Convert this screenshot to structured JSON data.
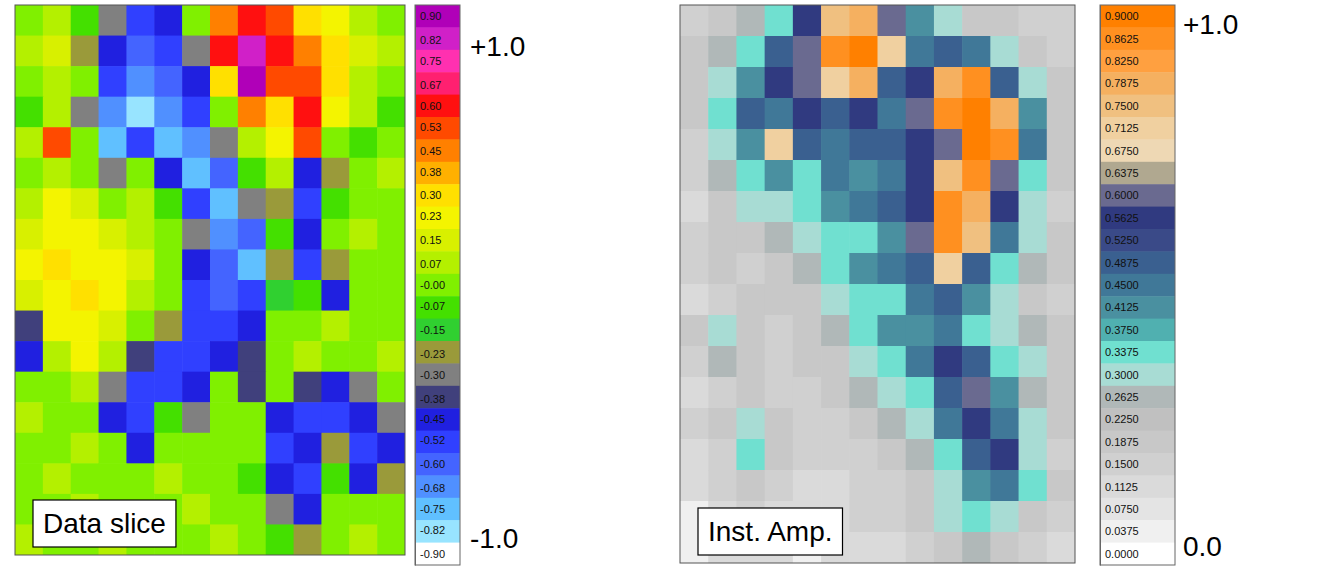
{
  "chart_data": [
    {
      "type": "heatmap",
      "title": "Data slice",
      "cells": [
        [
          0.0,
          0.1,
          -0.1,
          -0.3,
          -0.5,
          -0.45,
          0.0,
          0.45,
          0.6,
          0.5,
          0.3,
          0.2,
          0.1,
          0.0
        ],
        [
          0.05,
          0.15,
          -0.2,
          -0.45,
          -0.6,
          -0.5,
          -0.3,
          0.6,
          0.85,
          0.6,
          0.45,
          0.3,
          0.15,
          0.05
        ],
        [
          0.0,
          0.1,
          0.0,
          -0.5,
          -0.7,
          -0.6,
          -0.45,
          0.3,
          0.9,
          0.5,
          0.55,
          0.3,
          0.1,
          0.0
        ],
        [
          -0.1,
          0.05,
          -0.3,
          -0.7,
          -0.8,
          -0.7,
          -0.5,
          0.0,
          0.45,
          0.3,
          0.6,
          0.2,
          0.05,
          -0.05
        ],
        [
          0.1,
          0.5,
          0.0,
          -0.75,
          -0.5,
          -0.75,
          -0.7,
          -0.3,
          0.1,
          0.2,
          0.5,
          0.0,
          -0.1,
          0.0
        ],
        [
          0.0,
          0.1,
          0.0,
          -0.3,
          0.0,
          -0.45,
          -0.75,
          -0.6,
          -0.1,
          0.1,
          -0.45,
          -0.2,
          0.0,
          0.05
        ],
        [
          0.1,
          0.2,
          0.15,
          0.0,
          0.1,
          -0.1,
          -0.5,
          -0.75,
          -0.3,
          -0.2,
          -0.5,
          -0.1,
          0.0,
          0.0
        ],
        [
          0.15,
          0.25,
          0.2,
          0.15,
          0.1,
          0.0,
          -0.3,
          -0.7,
          -0.6,
          -0.1,
          -0.45,
          0.0,
          0.05,
          0.0
        ],
        [
          0.2,
          0.3,
          0.25,
          0.2,
          0.15,
          0.0,
          -0.45,
          -0.6,
          -0.75,
          -0.2,
          -0.5,
          -0.2,
          0.0,
          0.0
        ],
        [
          0.15,
          0.25,
          0.3,
          0.2,
          0.1,
          0.0,
          -0.5,
          -0.6,
          -0.5,
          -0.15,
          -0.1,
          -0.45,
          0.0,
          0.0
        ],
        [
          -0.4,
          0.2,
          0.25,
          0.15,
          0.0,
          -0.2,
          -0.55,
          -0.5,
          -0.45,
          0.0,
          0.0,
          0.1,
          0.0,
          0.0
        ],
        [
          -0.45,
          0.1,
          0.2,
          0.1,
          -0.4,
          -0.5,
          -0.5,
          -0.45,
          -0.4,
          0.0,
          0.1,
          0.0,
          0.0,
          0.05
        ],
        [
          0.0,
          0.0,
          0.1,
          -0.3,
          -0.5,
          -0.55,
          -0.45,
          0.0,
          -0.4,
          0.0,
          -0.4,
          -0.45,
          -0.3,
          0.0
        ],
        [
          0.05,
          0.0,
          0.0,
          -0.45,
          -0.5,
          -0.1,
          -0.3,
          0.0,
          0.0,
          -0.45,
          -0.55,
          -0.5,
          -0.45,
          -0.3
        ],
        [
          0.0,
          0.0,
          0.05,
          0.0,
          -0.45,
          0.0,
          0.0,
          0.0,
          0.0,
          -0.5,
          -0.45,
          -0.2,
          -0.55,
          -0.45
        ],
        [
          0.0,
          0.05,
          0.0,
          0.0,
          0.0,
          0.05,
          0.0,
          0.0,
          -0.1,
          -0.45,
          -0.5,
          -0.1,
          -0.45,
          -0.2
        ],
        [
          0.0,
          0.0,
          0.05,
          0.0,
          0.0,
          0.0,
          0.05,
          0.0,
          0.0,
          -0.3,
          -0.45,
          0.0,
          0.0,
          0.0
        ],
        [
          0.05,
          0.0,
          0.0,
          0.05,
          0.0,
          0.0,
          0.0,
          0.05,
          0.0,
          -0.1,
          -0.2,
          0.0,
          0.05,
          0.0
        ]
      ],
      "colorbar": {
        "clim": [
          -0.9375,
          0.9375
        ],
        "ticks": [
          {
            "value": 0.9,
            "label": "0.90"
          },
          0.82,
          0.75,
          0.67,
          {
            "value": 0.6,
            "label": "0.60"
          },
          0.53,
          0.45,
          0.38,
          {
            "value": 0.3,
            "label": "0.30"
          },
          0.23,
          0.15,
          0.07,
          {
            "value": 0,
            "label": "-0.00"
          },
          -0.07,
          -0.15,
          -0.23,
          {
            "value": -0.3,
            "label": "-0.30"
          },
          -0.38,
          -0.45,
          -0.52,
          {
            "value": -0.6,
            "label": "-0.60"
          },
          -0.68,
          -0.75,
          -0.82,
          {
            "value": -0.9,
            "label": "-0.90"
          }
        ],
        "colors": [
          "#b000b8",
          "#d020c8",
          "#ff30b0",
          "#ff2070",
          "#ff1010",
          "#ff4a00",
          "#ff8000",
          "#ffb000",
          "#ffe000",
          "#f4f400",
          "#d8f000",
          "#b4f000",
          "#80f000",
          "#44e000",
          "#30d030",
          "#9a9a3a",
          "#808080",
          "#40407c",
          "#2020e0",
          "#3040ff",
          "#4464ff",
          "#5090ff",
          "#60c0ff",
          "#98e4ff",
          "#ffffff"
        ]
      },
      "annotations": [
        "+1.0",
        "-1.0"
      ]
    },
    {
      "type": "heatmap",
      "title": "Inst. Amp.",
      "cells": [
        [
          0.15,
          0.2,
          0.25,
          0.35,
          0.55,
          0.75,
          0.8,
          0.6,
          0.4,
          0.3,
          0.2,
          0.2,
          0.15,
          0.15
        ],
        [
          0.2,
          0.25,
          0.35,
          0.5,
          0.6,
          0.85,
          0.9,
          0.7,
          0.45,
          0.5,
          0.45,
          0.3,
          0.2,
          0.15
        ],
        [
          0.2,
          0.3,
          0.4,
          0.55,
          0.6,
          0.7,
          0.8,
          0.5,
          0.55,
          0.8,
          0.85,
          0.5,
          0.3,
          0.2
        ],
        [
          0.2,
          0.35,
          0.5,
          0.45,
          0.55,
          0.5,
          0.55,
          0.45,
          0.6,
          0.85,
          0.9,
          0.8,
          0.4,
          0.2
        ],
        [
          0.15,
          0.3,
          0.4,
          0.7,
          0.5,
          0.45,
          0.5,
          0.5,
          0.55,
          0.6,
          0.9,
          0.85,
          0.45,
          0.2
        ],
        [
          0.15,
          0.25,
          0.35,
          0.4,
          0.35,
          0.45,
          0.4,
          0.45,
          0.55,
          0.75,
          0.85,
          0.6,
          0.35,
          0.2
        ],
        [
          0.1,
          0.2,
          0.3,
          0.3,
          0.35,
          0.4,
          0.45,
          0.5,
          0.55,
          0.85,
          0.8,
          0.55,
          0.3,
          0.15
        ],
        [
          0.15,
          0.2,
          0.2,
          0.25,
          0.3,
          0.35,
          0.35,
          0.4,
          0.6,
          0.85,
          0.75,
          0.45,
          0.3,
          0.2
        ],
        [
          0.15,
          0.2,
          0.15,
          0.2,
          0.25,
          0.35,
          0.4,
          0.45,
          0.5,
          0.7,
          0.5,
          0.35,
          0.25,
          0.2
        ],
        [
          0.1,
          0.15,
          0.2,
          0.2,
          0.2,
          0.3,
          0.35,
          0.35,
          0.45,
          0.5,
          0.4,
          0.3,
          0.2,
          0.15
        ],
        [
          0.2,
          0.3,
          0.2,
          0.15,
          0.2,
          0.25,
          0.35,
          0.4,
          0.4,
          0.45,
          0.35,
          0.3,
          0.25,
          0.2
        ],
        [
          0.15,
          0.25,
          0.2,
          0.15,
          0.2,
          0.2,
          0.3,
          0.35,
          0.45,
          0.55,
          0.5,
          0.35,
          0.3,
          0.2
        ],
        [
          0.1,
          0.15,
          0.2,
          0.15,
          0.15,
          0.2,
          0.25,
          0.3,
          0.35,
          0.5,
          0.6,
          0.4,
          0.25,
          0.2
        ],
        [
          0.15,
          0.2,
          0.3,
          0.2,
          0.15,
          0.15,
          0.2,
          0.25,
          0.3,
          0.45,
          0.55,
          0.45,
          0.3,
          0.2
        ],
        [
          0.1,
          0.15,
          0.35,
          0.2,
          0.15,
          0.15,
          0.15,
          0.2,
          0.25,
          0.35,
          0.5,
          0.55,
          0.3,
          0.15
        ],
        [
          0.1,
          0.15,
          0.2,
          0.15,
          0.1,
          0.1,
          0.15,
          0.15,
          0.2,
          0.3,
          0.4,
          0.45,
          0.35,
          0.2
        ],
        [
          0.05,
          0.1,
          0.15,
          0.1,
          0.1,
          0.1,
          0.15,
          0.15,
          0.2,
          0.3,
          0.35,
          0.3,
          0.2,
          0.15
        ],
        [
          0.05,
          0.1,
          0.1,
          0.1,
          0.05,
          0.1,
          0.1,
          0.1,
          0.15,
          0.2,
          0.25,
          0.2,
          0.15,
          0.1
        ]
      ],
      "colorbar": {
        "clim": [
          -0.01875,
          0.91875
        ],
        "ticks": [
          {
            "value": 0.9,
            "label": "0.9000"
          },
          0.8625,
          {
            "value": 0.825,
            "label": "0.8250"
          },
          0.7875,
          {
            "value": 0.75,
            "label": "0.7500"
          },
          0.7125,
          {
            "value": 0.675,
            "label": "0.6750"
          },
          0.6375,
          {
            "value": 0.6,
            "label": "0.6000"
          },
          0.5625,
          {
            "value": 0.525,
            "label": "0.5250"
          },
          0.4875,
          {
            "value": 0.45,
            "label": "0.4500"
          },
          0.4125,
          {
            "value": 0.375,
            "label": "0.3750"
          },
          0.3375,
          {
            "value": 0.3,
            "label": "0.3000"
          },
          0.2625,
          {
            "value": 0.225,
            "label": "0.2250"
          },
          0.1875,
          {
            "value": 0.15,
            "label": "0.1500"
          },
          0.1125,
          {
            "value": 0.075,
            "label": "0.0750"
          },
          0.0375,
          {
            "value": 0,
            "label": "0.0000"
          }
        ],
        "colors": [
          "#ff8000",
          "#ff9020",
          "#ffa040",
          "#f5b060",
          "#f0c080",
          "#f0d0a0",
          "#eed8b4",
          "#b0a890",
          "#6a6a90",
          "#303a80",
          "#3a4a88",
          "#3a6090",
          "#407898",
          "#4a90a0",
          "#50b0b0",
          "#70e0d0",
          "#a8dcd4",
          "#b0b8b8",
          "#c0c0c0",
          "#c8c8c8",
          "#d0d0d0",
          "#dadada",
          "#e4e4e4",
          "#f0f0f0",
          "#ffffff"
        ]
      },
      "annotations": [
        "+1.0",
        "0.0"
      ]
    }
  ]
}
